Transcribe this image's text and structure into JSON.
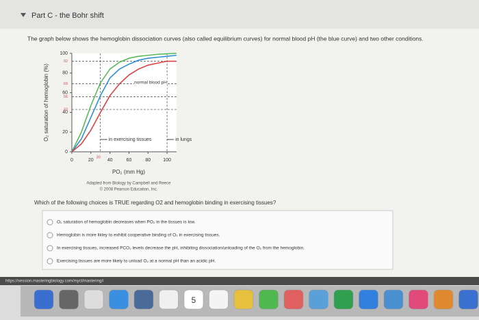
{
  "part_title": "Part C - the Bohr shift",
  "intro": "The graph below shows the hemoglobin dissociation curves (also called equilibrium curves) for normal blood pH (the blue curve) and two other conditions.",
  "chart_data": {
    "type": "line",
    "x_label": "PO₂ (mm Hg)",
    "y_label": "O₂ saturation of hemoglobin (%)",
    "x": [
      0,
      10,
      20,
      30,
      40,
      50,
      60,
      70,
      80,
      90,
      100,
      110
    ],
    "series": [
      {
        "color": "#5cb85c",
        "values": [
          0,
          20,
          47,
          70,
          84,
          91,
          95,
          97,
          98,
          99,
          99.5,
          100
        ]
      },
      {
        "color": "#2f8fd8",
        "values": [
          0,
          13,
          35,
          57,
          75,
          84,
          89,
          93,
          95,
          96,
          97,
          98
        ]
      },
      {
        "color": "#e04040",
        "values": [
          0,
          8,
          22,
          40,
          57,
          69,
          78,
          84,
          88,
          90,
          92,
          92
        ]
      }
    ],
    "xlim": [
      0,
      110
    ],
    "ylim": [
      0,
      100
    ],
    "xticks": [
      0,
      20,
      40,
      60,
      80,
      100
    ],
    "yticks": [
      0,
      20,
      40,
      60,
      80,
      100
    ],
    "marked_levels": [
      92,
      69,
      56,
      43
    ],
    "marked_x": [
      30,
      100
    ],
    "annotations": [
      {
        "text": "normal blood pH"
      },
      {
        "text": "in exercising tissues"
      },
      {
        "text": "in lungs"
      }
    ]
  },
  "credit": [
    "Adapted from Biology by Campbell and Reece",
    "© 2008 Pearson Education, Inc."
  ],
  "question": "Which of the following choices is TRUE regarding O2 and hemoglobin binding in exercising tissues?",
  "choices": [
    "O₂ saturation of hemoglobin decreases when PO₂ in the tissues is low.",
    "Hemoglobin is more likley to exhibit cooperative binding of O₂ in exercising tissues.",
    "In exercising tissues, increased PCO₂ levels decrease the pH, inhibiting dissociation/unloading of the O₂ from the hemoglobin.",
    "Exercising tissues are more likely to unload O₂ at a normal pH than an acidic pH."
  ],
  "url": "https://session.masteringbiology.com/myct/mastering#",
  "dock_calendar_day": "5"
}
